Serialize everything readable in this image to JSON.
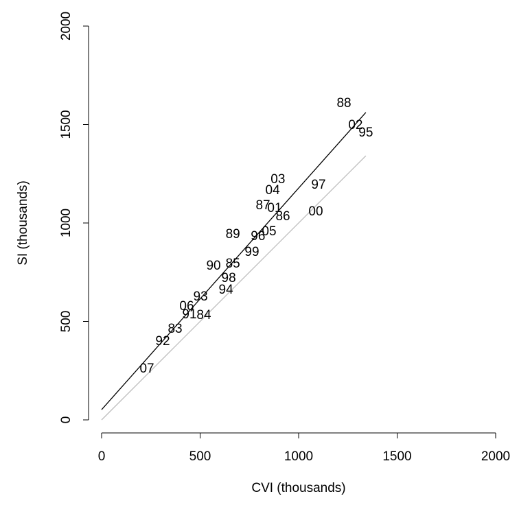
{
  "chart_data": {
    "type": "scatter",
    "x_label": "CVI (thousands)",
    "y_label": "SI (thousands)",
    "labels": [
      "88",
      "02",
      "95",
      "03",
      "04",
      "97",
      "87",
      "01",
      "86",
      "00",
      "89",
      "05",
      "96",
      "99",
      "90",
      "85",
      "98",
      "94",
      "93",
      "06",
      "91",
      "84",
      "83",
      "92",
      "07"
    ],
    "x": [
      1230,
      1289,
      1341,
      895,
      868,
      1101,
      819,
      878,
      920,
      1087,
      666,
      850,
      794,
      763,
      568,
      666,
      645,
      631,
      502,
      432,
      446,
      519,
      373,
      310,
      230
    ],
    "y": [
      1606,
      1495,
      1456,
      1220,
      1164,
      1192,
      1087,
      1073,
      1031,
      1056,
      941,
      955,
      930,
      850,
      780,
      791,
      718,
      659,
      624,
      575,
      533,
      530,
      460,
      397,
      258
    ],
    "lines": [
      {
        "color": "#000000",
        "x": [
          0,
          1341
        ],
        "y": [
          52,
          1561
        ]
      },
      {
        "color": "#bebebe",
        "x": [
          0,
          1341
        ],
        "y": [
          0,
          1341
        ]
      }
    ],
    "xlim": [
      0,
      2000
    ],
    "ylim": [
      0,
      2000
    ],
    "xticks": [
      0,
      500,
      1000,
      1500,
      2000
    ],
    "yticks": [
      0,
      500,
      1000,
      1500,
      2000
    ]
  }
}
